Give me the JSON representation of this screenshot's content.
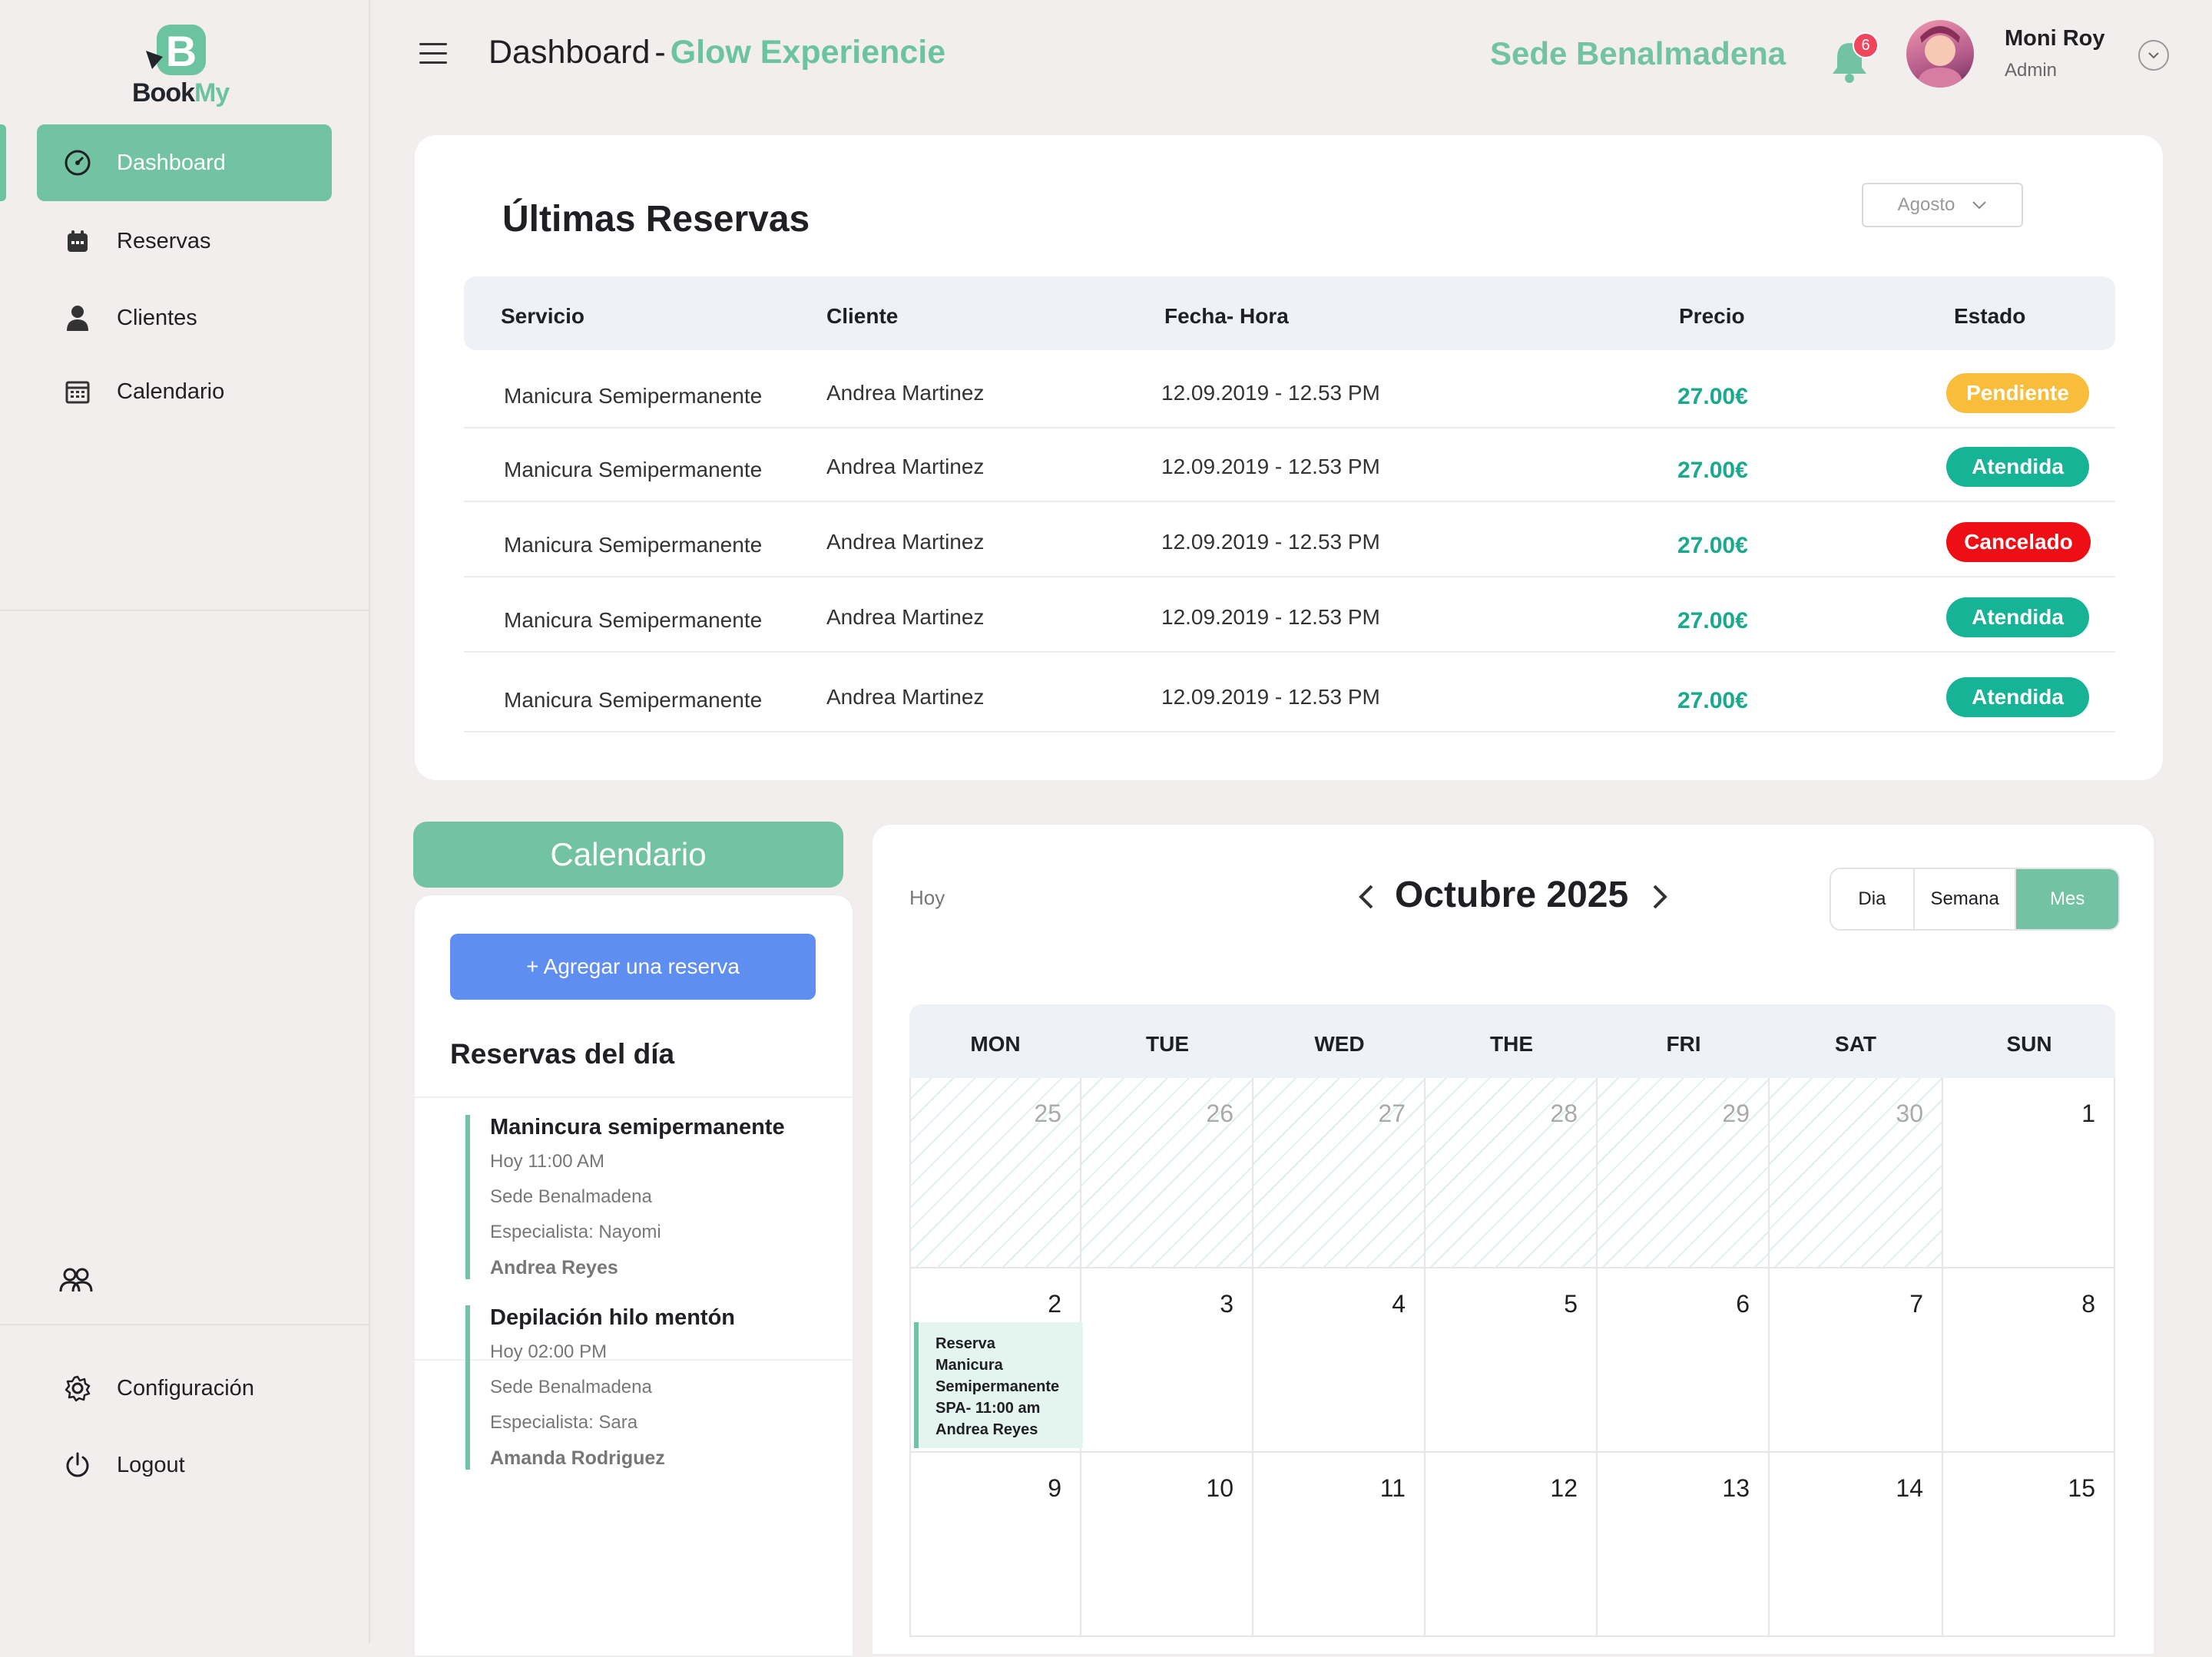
{
  "brand": {
    "logo_letter": "B",
    "book": "Book",
    "my": "My"
  },
  "sidebar": {
    "items": [
      {
        "label": "Dashboard"
      },
      {
        "label": "Reservas"
      },
      {
        "label": "Clientes"
      },
      {
        "label": "Calendario"
      }
    ],
    "bottom": [
      {
        "label": "Configuración"
      },
      {
        "label": "Logout"
      }
    ]
  },
  "header": {
    "title": "Dashboard",
    "separator": "-",
    "business": "Glow Experiencie",
    "sede": "Sede Benalmadena",
    "notifications": "6",
    "user_name": "Moni Roy",
    "user_role": "Admin"
  },
  "reservas": {
    "title": "Últimas Reservas",
    "month_filter": "Agosto",
    "columns": [
      "Servicio",
      "Cliente",
      "Fecha- Hora",
      "Precio",
      "Estado"
    ],
    "rows": [
      {
        "servicio": "Manicura Semipermanente",
        "cliente": "Andrea Martinez",
        "fecha": "12.09.2019 - 12.53 PM",
        "precio": "27.00€",
        "estado": "Pendiente",
        "color": "#f9bd3c"
      },
      {
        "servicio": "Manicura Semipermanente",
        "cliente": "Andrea Martinez",
        "fecha": "12.09.2019 - 12.53 PM",
        "precio": "27.00€",
        "estado": "Atendida",
        "color": "#16b397"
      },
      {
        "servicio": "Manicura Semipermanente",
        "cliente": "Andrea Martinez",
        "fecha": "12.09.2019 - 12.53 PM",
        "precio": "27.00€",
        "estado": "Cancelado",
        "color": "#ee0f16"
      },
      {
        "servicio": "Manicura Semipermanente",
        "cliente": "Andrea Martinez",
        "fecha": "12.09.2019 - 12.53 PM",
        "precio": "27.00€",
        "estado": "Atendida",
        "color": "#16b397"
      },
      {
        "servicio": "Manicura Semipermanente",
        "cliente": "Andrea Martinez",
        "fecha": "12.09.2019 - 12.53 PM",
        "precio": "27.00€",
        "estado": "Atendida",
        "color": "#16b397"
      }
    ]
  },
  "calendar_panel": {
    "title": "Calendario",
    "add_button": "+ Agregar una reserva",
    "day_title": "Reservas del día",
    "appointments": [
      {
        "title": "Manincura semipermanente",
        "time": "Hoy 11:00 AM",
        "sede": "Sede Benalmadena",
        "specialist": "Especialista: Nayomi",
        "client": "Andrea Reyes"
      },
      {
        "title": "Depilación hilo mentón",
        "time": "Hoy 02:00 PM",
        "sede": "Sede Benalmadena",
        "specialist": "Especialista: Sara",
        "client": "Amanda Rodriguez"
      }
    ]
  },
  "month_view": {
    "today_label": "Hoy",
    "title": "Octubre 2025",
    "views": [
      "Dia",
      "Semana",
      "Mes"
    ],
    "active_view": "Mes",
    "weekdays": [
      "MON",
      "TUE",
      "WED",
      "THE",
      "FRI",
      "SAT",
      "SUN"
    ],
    "weeks": [
      [
        {
          "d": "25",
          "muted": true
        },
        {
          "d": "26",
          "muted": true
        },
        {
          "d": "27",
          "muted": true
        },
        {
          "d": "28",
          "muted": true
        },
        {
          "d": "29",
          "muted": true
        },
        {
          "d": "30",
          "muted": true
        },
        {
          "d": "1",
          "muted": false
        }
      ],
      [
        {
          "d": "2",
          "muted": false
        },
        {
          "d": "3",
          "muted": false
        },
        {
          "d": "4",
          "muted": false
        },
        {
          "d": "5",
          "muted": false
        },
        {
          "d": "6",
          "muted": false
        },
        {
          "d": "7",
          "muted": false
        },
        {
          "d": "8",
          "muted": false
        }
      ],
      [
        {
          "d": "9",
          "muted": false
        },
        {
          "d": "10",
          "muted": false
        },
        {
          "d": "11",
          "muted": false
        },
        {
          "d": "12",
          "muted": false
        },
        {
          "d": "13",
          "muted": false
        },
        {
          "d": "14",
          "muted": false
        },
        {
          "d": "15",
          "muted": false
        }
      ]
    ],
    "event": {
      "lines": [
        "Reserva",
        "Manicura",
        "Semipermanente",
        "SPA- 11:00 am",
        "Andrea Reyes"
      ]
    }
  },
  "colors": {
    "accent": "#72c3a3",
    "blue_button": "#5e8ef0",
    "price": "#1aa98d"
  },
  "icons": [
    "dashboard-icon",
    "calendar-icon",
    "user-icon",
    "calendar-grid-icon",
    "team-icon",
    "gear-icon",
    "power-icon",
    "menu-icon",
    "bell-icon",
    "chevron-down-icon",
    "chevron-left-icon",
    "chevron-right-icon"
  ]
}
